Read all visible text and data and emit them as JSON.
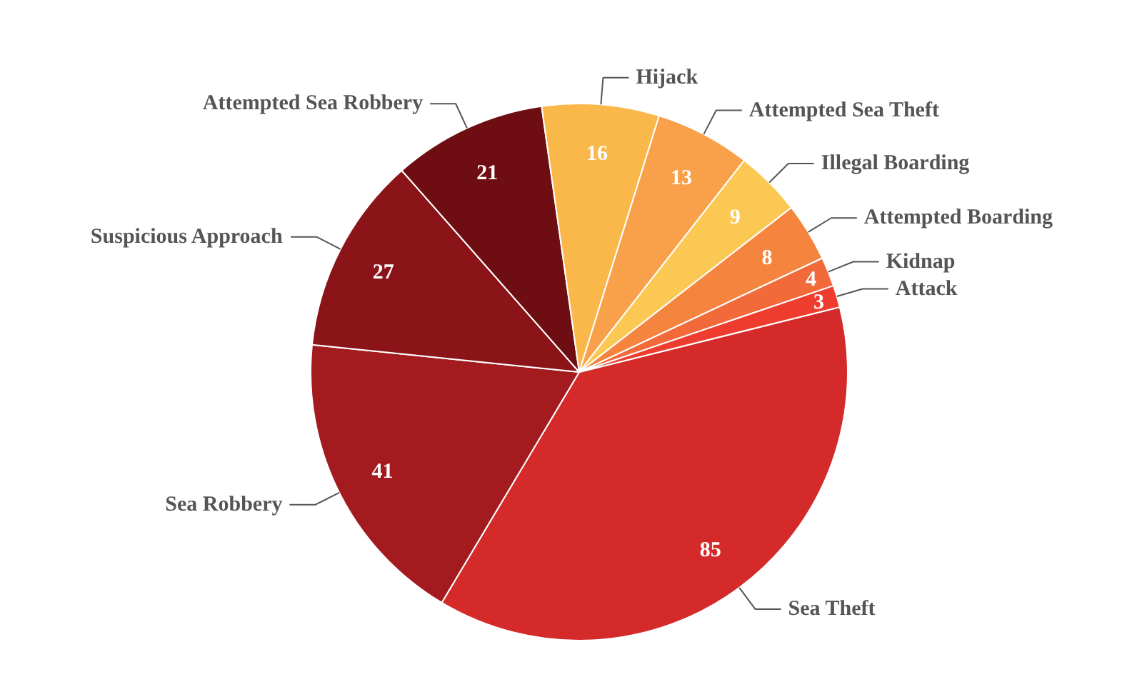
{
  "chart_data": {
    "type": "pie",
    "categories": [
      "Sea Theft",
      "Sea Robbery",
      "Suspicious Approach",
      "Attempted Sea Robbery",
      "Hijack",
      "Attempted Sea Theft",
      "Illegal Boarding",
      "Attempted Boarding",
      "Kidnap",
      "Attack"
    ],
    "values": [
      85,
      41,
      27,
      21,
      16,
      13,
      9,
      8,
      4,
      3
    ],
    "colors": [
      "#d42a2a",
      "#a31b1f",
      "#8b1419",
      "#6f0e12",
      "#fbb84a",
      "#f9a04a",
      "#fbc853",
      "#f5853e",
      "#f26a3a",
      "#ee3d2e"
    ],
    "data_labels": true
  }
}
